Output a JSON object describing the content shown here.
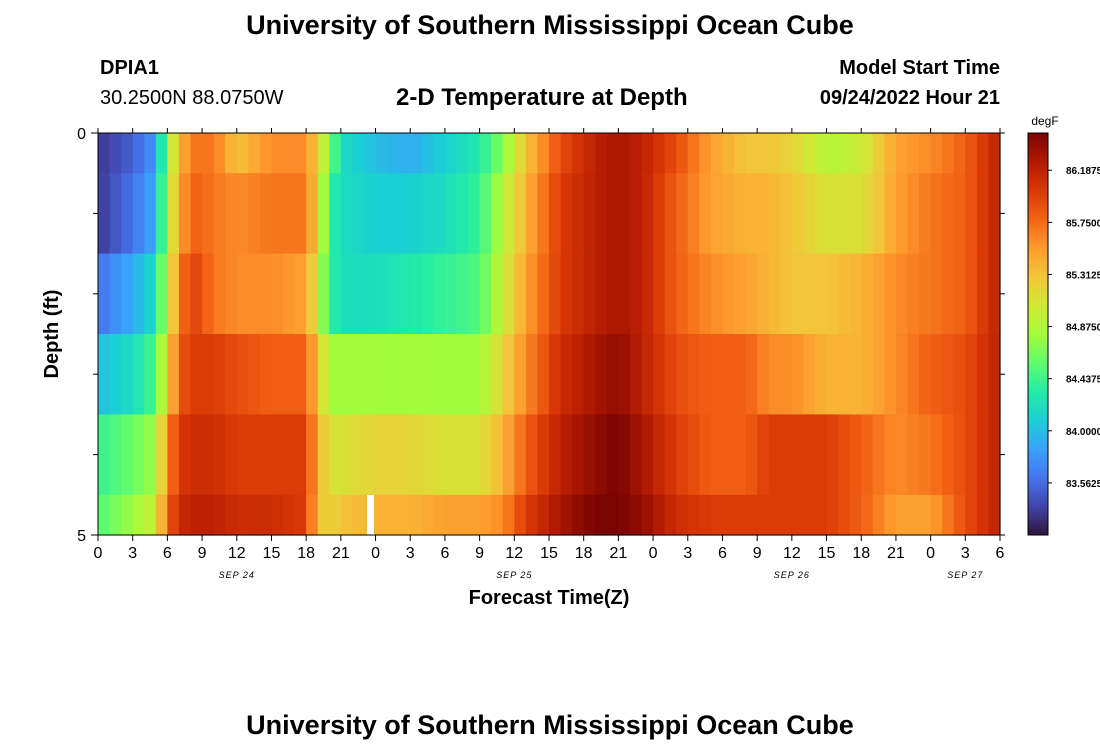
{
  "header": {
    "title": "University of Southern Mississippi Ocean Cube",
    "station_id": "DPIA1",
    "station_coords": "30.2500N  88.0750W",
    "plot_title": "2-D Temperature at Depth",
    "model_start_label": "Model Start Time",
    "model_start_value": "09/24/2022 Hour 21"
  },
  "footer": {
    "title": "University of Southern Mississippi Ocean Cube"
  },
  "chart_data": {
    "type": "heatmap",
    "title": "2-D Temperature at Depth",
    "xlabel": "Forecast Time(Z)",
    "ylabel": "Depth (ft)",
    "ylim": [
      0,
      5
    ],
    "y_tick_labels": [
      "0",
      "5"
    ],
    "x_tick_labels": [
      "0",
      "3",
      "6",
      "9",
      "12",
      "15",
      "18",
      "21",
      "0",
      "3",
      "6",
      "9",
      "12",
      "15",
      "18",
      "21",
      "0",
      "3",
      "6",
      "9",
      "12",
      "15",
      "18",
      "21",
      "0",
      "3",
      "6"
    ],
    "x_hours": [
      0,
      3,
      6,
      9,
      12,
      15,
      18,
      21,
      24,
      27,
      30,
      33,
      36,
      39,
      42,
      45,
      48,
      51,
      54,
      57,
      60,
      63,
      66,
      69,
      72,
      75,
      78
    ],
    "x_range_hours": [
      0,
      78
    ],
    "date_labels": [
      {
        "label": "SEP 24",
        "hour": 12
      },
      {
        "label": "SEP 25",
        "hour": 36
      },
      {
        "label": "SEP 26",
        "hour": 60
      },
      {
        "label": "SEP 27",
        "hour": 75
      }
    ],
    "depth_levels_ft": [
      0,
      0.5,
      1.5,
      2.5,
      3.5,
      4.5
    ],
    "colorbar": {
      "unit": "degF",
      "min": 83.125,
      "max": 86.5,
      "tick_labels": [
        "83.5625",
        "84.0000",
        "84.4375",
        "84.8750",
        "85.3125",
        "85.7500",
        "86.1875"
      ],
      "colors": [
        "#30123b",
        "#4145ab",
        "#4675ed",
        "#39a2fc",
        "#1bcfd4",
        "#24eca6",
        "#61fc6c",
        "#a4fc3b",
        "#d1e834",
        "#f3c63a",
        "#fe9b2d",
        "#f36315",
        "#d93806",
        "#b11901",
        "#7a0402"
      ]
    },
    "missing_marker_hour": 23,
    "time_keys": [
      0,
      3,
      5,
      6,
      7,
      8,
      10,
      12,
      15,
      18,
      19,
      20,
      21,
      24,
      27,
      30,
      33,
      35,
      37,
      40,
      43,
      45,
      47,
      50,
      53,
      56,
      58,
      60,
      63,
      66,
      69,
      72,
      75,
      78
    ],
    "rows": [
      {
        "depth": "0-0.5 ft",
        "values": [
          83.3,
          83.5,
          83.8,
          84.8,
          85.3,
          85.7,
          85.7,
          85.3,
          85.6,
          85.6,
          85.2,
          84.7,
          84.2,
          84.0,
          83.9,
          84.1,
          84.3,
          84.7,
          85.3,
          85.9,
          86.2,
          86.3,
          86.2,
          85.9,
          85.5,
          85.3,
          85.3,
          85.2,
          84.9,
          85.0,
          85.5,
          85.6,
          85.8,
          86.2
        ]
      },
      {
        "depth": "0.5-1.5 ft",
        "values": [
          83.3,
          83.6,
          83.9,
          84.9,
          85.4,
          85.8,
          85.7,
          85.6,
          85.7,
          85.7,
          85.2,
          84.4,
          84.2,
          84.1,
          84.1,
          84.2,
          84.4,
          84.9,
          85.4,
          86.0,
          86.2,
          86.3,
          86.2,
          85.8,
          85.5,
          85.4,
          85.4,
          85.3,
          85.1,
          85.1,
          85.5,
          85.7,
          85.8,
          86.2
        ]
      },
      {
        "depth": "1.5-2.5 ft",
        "values": [
          83.6,
          83.9,
          84.2,
          85.0,
          85.6,
          86.0,
          85.7,
          85.6,
          85.6,
          85.5,
          85.0,
          84.4,
          84.2,
          84.2,
          84.3,
          84.4,
          84.5,
          85.0,
          85.5,
          86.0,
          86.2,
          86.3,
          86.2,
          85.8,
          85.6,
          85.5,
          85.4,
          85.3,
          85.3,
          85.4,
          85.6,
          85.7,
          85.8,
          86.2
        ]
      },
      {
        "depth": "2.5-3.5 ft",
        "values": [
          84.0,
          84.2,
          84.5,
          85.2,
          85.8,
          86.0,
          86.0,
          85.9,
          85.8,
          85.8,
          85.3,
          84.8,
          84.8,
          84.8,
          84.8,
          84.8,
          84.8,
          85.2,
          85.6,
          86.1,
          86.3,
          86.4,
          86.2,
          85.9,
          85.8,
          85.8,
          85.6,
          85.6,
          85.4,
          85.4,
          85.6,
          85.8,
          85.9,
          86.2
        ]
      },
      {
        "depth": "3.5-4.5 ft",
        "values": [
          84.4,
          84.6,
          84.8,
          85.6,
          86.0,
          86.1,
          86.1,
          86.0,
          86.0,
          86.0,
          85.4,
          85.1,
          85.1,
          85.2,
          85.2,
          85.1,
          85.1,
          85.4,
          85.8,
          86.2,
          86.4,
          86.5,
          86.3,
          86.0,
          85.8,
          85.8,
          86.0,
          86.0,
          86.0,
          85.8,
          85.6,
          85.7,
          85.9,
          86.2
        ]
      },
      {
        "depth": "4.5-5 ft",
        "values": [
          84.5,
          84.8,
          85.0,
          85.8,
          86.1,
          86.2,
          86.2,
          86.1,
          86.1,
          86.0,
          85.3,
          85.2,
          85.3,
          85.4,
          85.4,
          85.5,
          85.5,
          85.6,
          86.0,
          86.3,
          86.5,
          86.5,
          86.4,
          86.1,
          86.0,
          86.0,
          86.0,
          86.0,
          86.0,
          85.8,
          85.5,
          85.5,
          85.9,
          86.2
        ]
      }
    ]
  }
}
